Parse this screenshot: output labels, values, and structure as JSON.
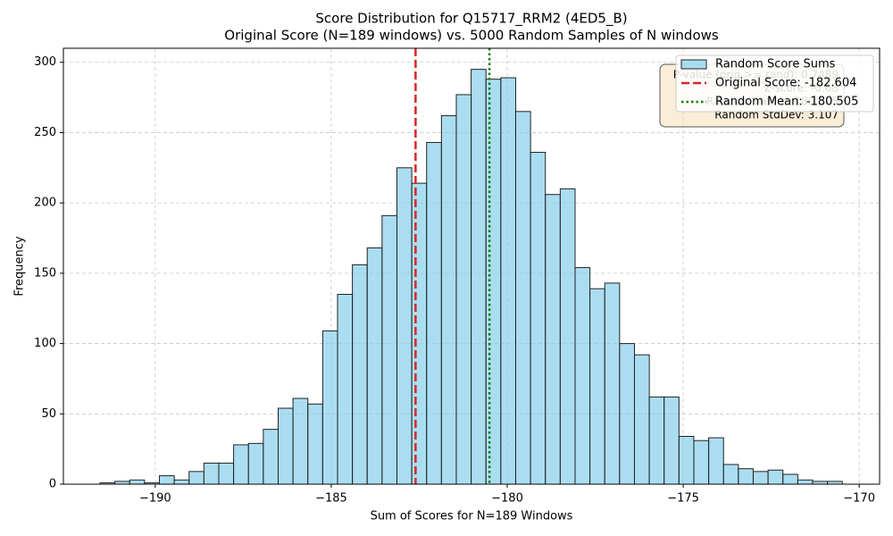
{
  "chart_data": {
    "type": "histogram",
    "title": "Score Distribution for Q15717_RRM2 (4ED5_B)",
    "subtitle": "Original Score (N=189 windows) vs. 5000 Random Samples of N windows",
    "x_label": "Sum of Scores for N=189 Windows",
    "y_label": "Frequency",
    "series": [
      {
        "name": "Random Score Sums",
        "color": "#87ceeb",
        "bins": [
          -191.57,
          -191.148,
          -190.726,
          -190.305,
          -189.883,
          -189.461,
          -189.039,
          -188.617,
          -188.196,
          -187.774,
          -187.352,
          -186.93,
          -186.508,
          -186.087,
          -185.665,
          -185.243,
          -184.821,
          -184.399,
          -183.978,
          -183.556,
          -183.134,
          -182.712,
          -182.29,
          -181.869,
          -181.447,
          -181.025,
          -180.603,
          -180.181,
          -179.76,
          -179.338,
          -178.916,
          -178.494,
          -178.072,
          -177.651,
          -177.229,
          -176.807,
          -176.385,
          -175.963,
          -175.542,
          -175.12,
          -174.698,
          -174.276,
          -173.854,
          -173.433,
          -173.011,
          -172.589,
          -172.167,
          -171.745,
          -171.324,
          -170.902,
          -170.48
        ],
        "values": [
          1,
          2,
          3,
          1,
          6,
          3,
          9,
          15,
          15,
          28,
          29,
          39,
          54,
          61,
          57,
          109,
          135,
          156,
          168,
          191,
          225,
          214,
          243,
          262,
          277,
          295,
          288,
          289,
          265,
          236,
          206,
          210,
          154,
          139,
          143,
          100,
          92,
          62,
          62,
          34,
          31,
          33,
          14,
          11,
          9,
          10,
          7,
          3,
          2,
          2
        ]
      }
    ],
    "lines": [
      {
        "name": "Original Score: -182.604",
        "value": -182.604,
        "color": "#d62728",
        "style": "dashed"
      },
      {
        "name": "Random Mean: -180.505",
        "value": -180.505,
        "color": "#008000",
        "style": "dotted"
      }
    ],
    "annotation": [
      "P-value (orig >= rand): 0.7489",
      "Z-score: -0.68",
      "Random Mean: -180.505",
      "Random StdDev: 3.107"
    ],
    "xlim": [
      -192.61,
      -169.42
    ],
    "ylim": [
      0,
      310
    ],
    "xticks": [
      {
        "value": -190,
        "label": "−190"
      },
      {
        "value": -185,
        "label": "−185"
      },
      {
        "value": -180,
        "label": "−180"
      },
      {
        "value": -175,
        "label": "−175"
      },
      {
        "value": -170,
        "label": "−170"
      }
    ],
    "yticks": [
      0,
      50,
      100,
      150,
      200,
      250,
      300
    ],
    "grid": true,
    "legend": "upper right"
  }
}
